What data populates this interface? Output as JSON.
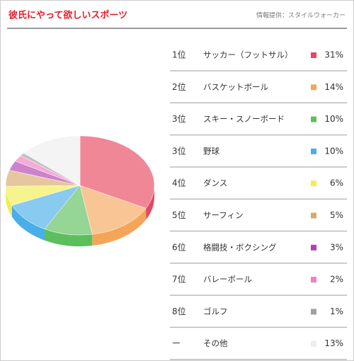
{
  "chart_data": {
    "type": "pie",
    "title": "彼氏にやって欲しいスポーツ",
    "source": "情報提供：スタイルウォーカー",
    "ranks": [
      "1位",
      "2位",
      "3位",
      "3位",
      "4位",
      "5位",
      "6位",
      "7位",
      "8位",
      "ー"
    ],
    "categories": [
      "サッカー（フットサル）",
      "バスケットボール",
      "スキー・スノーボード",
      "野球",
      "ダンス",
      "サーフィン",
      "格闘技・ボクシング",
      "バレーボール",
      "ゴルフ",
      "その他"
    ],
    "values": [
      31,
      14,
      10,
      10,
      6,
      5,
      3,
      2,
      1,
      13
    ],
    "value_labels": [
      "31%",
      "14%",
      "10%",
      "10%",
      "6%",
      "5%",
      "3%",
      "2%",
      "1%",
      "13%"
    ],
    "colors": [
      "#e8475f",
      "#f5a55a",
      "#5cbf5c",
      "#4aaee8",
      "#f0ee50",
      "#d9a86c",
      "#b040b0",
      "#f080c0",
      "#a0a0a0",
      "#eeeeee"
    ]
  }
}
